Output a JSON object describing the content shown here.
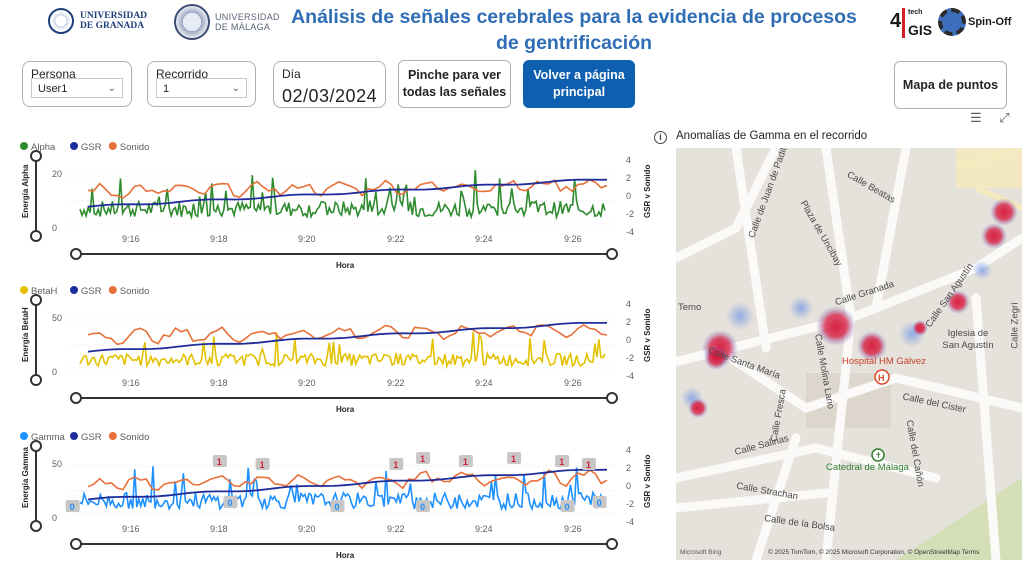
{
  "header": {
    "title": "Análisis de señales cerebrales para la evidencia de procesos de gentrificación",
    "logo_ugr_line1": "UNIVERSIDAD",
    "logo_ugr_line2": "DE GRANADA",
    "logo_uma_line1": "UNIVERSIDAD",
    "logo_uma_line2": "DE MÁLAGA",
    "logo_tech_a": "4",
    "logo_tech_b": "tech",
    "logo_tech_c": "GIS",
    "logo_spin": "Spin-Off"
  },
  "controls": {
    "persona_label": "Persona",
    "persona_value": "User1",
    "recorrido_label": "Recorrido",
    "recorrido_value": "1",
    "dia_label": "Día",
    "dia_value": "02/03/2024",
    "btn_all_signals": "Pinche para ver todas las señales",
    "btn_main_page": "Volver a página principal",
    "btn_map_points": "Mapa de puntos"
  },
  "chart_data": [
    {
      "type": "line",
      "legend": [
        "Alpha",
        "GSR",
        "Sonido"
      ],
      "colors": [
        "#2e8b2e",
        "#1f2d9a",
        "#e8703a"
      ],
      "ylabel": "Energía Alpha",
      "y2label": "GSR y Sonido",
      "xlabel": "Hora",
      "x_ticks": [
        "9:16",
        "9:18",
        "9:20",
        "9:22",
        "9:24",
        "9:26"
      ],
      "y_ticks": [
        "0",
        "20"
      ],
      "y2_ticks": [
        "4",
        "2",
        "0",
        "-2",
        "-4"
      ],
      "ylim": [
        0,
        25
      ],
      "y2lim": [
        -4,
        4
      ],
      "gsr_start": -1.2,
      "gsr_end": 1.9,
      "sound_mean": 0.5,
      "primary_level": 5,
      "primary_amp": 14
    },
    {
      "type": "line",
      "legend": [
        "BetaH",
        "GSR",
        "Sonido"
      ],
      "colors": [
        "#e3c100",
        "#1f2d9a",
        "#e8703a"
      ],
      "ylabel": "Energía BetaH",
      "y2label": "GSR y Sonido",
      "xlabel": "Hora",
      "x_ticks": [
        "9:16",
        "9:18",
        "9:20",
        "9:22",
        "9:24",
        "9:26"
      ],
      "y_ticks": [
        "0",
        "50"
      ],
      "y2_ticks": [
        "4",
        "2",
        "0",
        "-2",
        "-4"
      ],
      "ylim": [
        0,
        80
      ],
      "y2lim": [
        -4,
        4
      ],
      "gsr_start": -1.3,
      "gsr_end": 2.0,
      "sound_mean": 0.4,
      "primary_level": 10,
      "primary_amp": 35
    },
    {
      "type": "line",
      "legend": [
        "Gamma",
        "GSR",
        "Sonido"
      ],
      "colors": [
        "#1e90ff",
        "#1f2d9a",
        "#e8703a"
      ],
      "ylabel": "Energía Gamma",
      "y2label": "GSR y Sonido",
      "xlabel": "Hora",
      "x_ticks": [
        "9:16",
        "9:18",
        "9:20",
        "9:22",
        "9:24",
        "9:26"
      ],
      "y_ticks": [
        "0",
        "50"
      ],
      "y2_ticks": [
        "4",
        "2",
        "0",
        "-2",
        "-4"
      ],
      "ylim": [
        0,
        70
      ],
      "y2lim": [
        -4,
        4
      ],
      "gsr_start": -1.5,
      "gsr_end": 1.9,
      "sound_mean": 0.2,
      "primary_level": 12,
      "primary_amp": 40,
      "anomaly_labels": [
        {
          "t": 0.005,
          "label": "0"
        },
        {
          "t": 0.28,
          "label": "1"
        },
        {
          "t": 0.36,
          "label": "1"
        },
        {
          "t": 0.3,
          "label": "0"
        },
        {
          "t": 0.5,
          "label": "0"
        },
        {
          "t": 0.61,
          "label": "1"
        },
        {
          "t": 0.66,
          "label": "1"
        },
        {
          "t": 0.74,
          "label": "1"
        },
        {
          "t": 0.66,
          "label": "0"
        },
        {
          "t": 0.83,
          "label": "1"
        },
        {
          "t": 0.92,
          "label": "1"
        },
        {
          "t": 0.97,
          "label": "1"
        },
        {
          "t": 0.93,
          "label": "0"
        },
        {
          "t": 0.99,
          "label": "0"
        }
      ]
    }
  ],
  "map": {
    "title": "Anomalías de Gamma en el recorrido",
    "streets": [
      {
        "text": "Calle de Juan de Padilla",
        "rot": -70
      },
      {
        "text": "Calle Beatas",
        "rot": 30
      },
      {
        "text": "Plaza de Uncibay",
        "rot": 60
      },
      {
        "text": "Calle Granada",
        "rot": -18
      },
      {
        "text": "Calle San Agustín",
        "rot": -55
      },
      {
        "text": "Calle Santa María",
        "rot": 20
      },
      {
        "text": "Calle Molina Lario",
        "rot": 80
      },
      {
        "text": "Calle Fresca",
        "rot": -80
      },
      {
        "text": "Calle del Cister",
        "rot": 12
      },
      {
        "text": "Calle Salinas",
        "rot": -15
      },
      {
        "text": "Calle del Cañón",
        "rot": 80
      },
      {
        "text": "Calle Strachan",
        "rot": 10
      },
      {
        "text": "Calle de la Bolsa",
        "rot": 8
      },
      {
        "text": "Calle Zegrí",
        "rot": -90
      },
      {
        "text": "Temo",
        "rot": 0
      }
    ],
    "pois": [
      "Hospital HM Gálvez",
      "Iglesia de San Agustín",
      "Catedral de Málaga"
    ],
    "attribution": "© 2025 TomTom, © 2025 Microsoft Corporation, © OpenStreetMap  Terms",
    "bing": "Microsoft Bing"
  }
}
